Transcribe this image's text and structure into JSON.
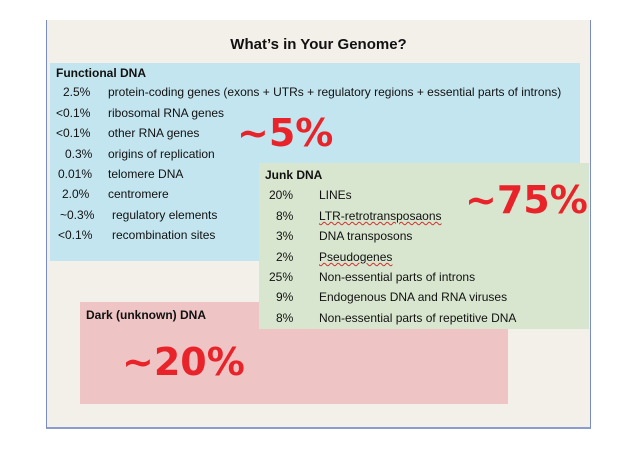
{
  "title": "What’s in Your Genome?",
  "functional": {
    "heading": "Functional DNA",
    "big": "~5%",
    "rows": [
      {
        "pct": "2.5%",
        "label": "protein-coding genes (exons + UTRs + regulatory regions + essential parts of introns)"
      },
      {
        "pct": "<0.1%",
        "label": "ribosomal RNA genes"
      },
      {
        "pct": "<0.1%",
        "label": "other RNA genes"
      },
      {
        "pct": "0.3%",
        "label": "origins of replication"
      },
      {
        "pct": "0.01%",
        "label": "telomere DNA"
      },
      {
        "pct": "2.0%",
        "label": "centromere"
      },
      {
        "pct": "~0.3%",
        "label": "regulatory elements"
      },
      {
        "pct": "<0.1%",
        "label": "recombination sites"
      }
    ]
  },
  "junk": {
    "heading": "Junk DNA",
    "big": "~75%",
    "rows": [
      {
        "pct": "20%",
        "label": "LINEs"
      },
      {
        "pct": "8%",
        "label": "LTR-retrotransposaons"
      },
      {
        "pct": "3%",
        "label": "DNA transposons"
      },
      {
        "pct": "2%",
        "label": "Pseudogenes"
      },
      {
        "pct": "25%",
        "label": "Non-essential parts of introns"
      },
      {
        "pct": "9%",
        "label": "Endogenous DNA and RNA viruses"
      },
      {
        "pct": "8%",
        "label": "Non-essential parts of repetitive DNA"
      }
    ]
  },
  "dark": {
    "heading": "Dark (unknown) DNA",
    "big": "~20%"
  },
  "colors": {
    "functional_bg": "#c3e5ef",
    "junk_bg": "#d9e6cf",
    "dark_bg": "#efc4c4",
    "big_text": "#e8242a"
  }
}
